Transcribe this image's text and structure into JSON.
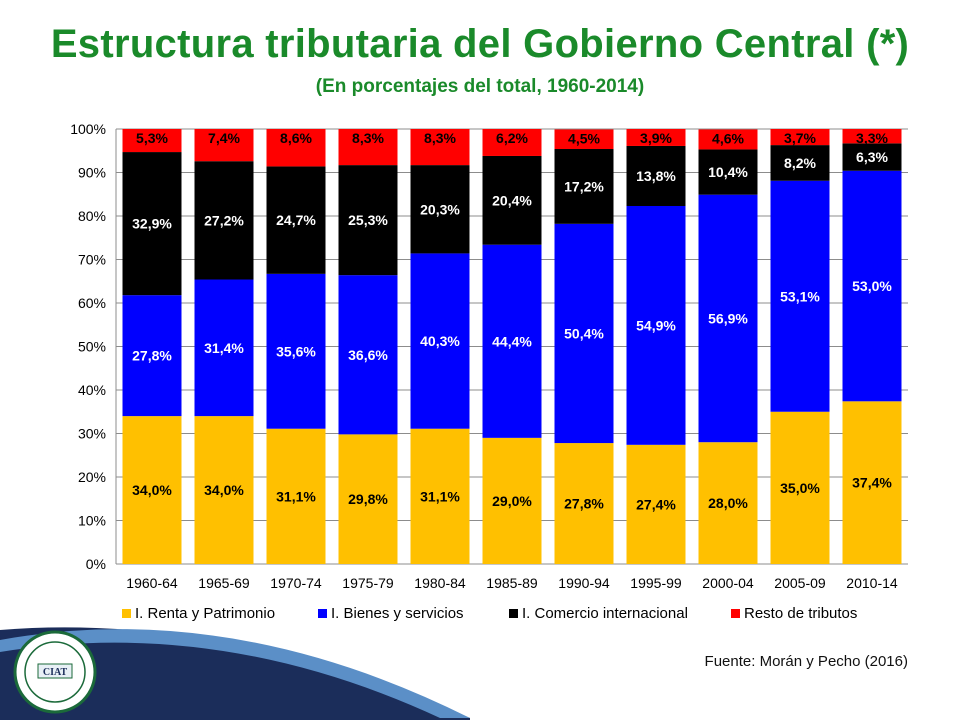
{
  "title": "Estructura tributaria del Gobierno Central (*)",
  "subtitle": "(En porcentajes del total, 1960-2014)",
  "source": "Fuente: Morán y Pecho (2016)",
  "colors": {
    "title": "#1a8a2a",
    "renta": "#ffc000",
    "bienes": "#0000ff",
    "comercio": "#000000",
    "resto": "#ff0000",
    "decor_navy": "#1b2d5a",
    "decor_blue": "#5b8fc7"
  },
  "logo": {
    "icon": "institution-seal-icon",
    "text": "CIAT"
  },
  "chart_data": {
    "type": "bar",
    "stacked": true,
    "categories": [
      "1960-64",
      "1965-69",
      "1970-74",
      "1975-79",
      "1980-84",
      "1985-89",
      "1990-94",
      "1995-99",
      "2000-04",
      "2005-09",
      "2010-14"
    ],
    "series": [
      {
        "name": "I. Renta y Patrimonio",
        "color": "#ffc000",
        "values": [
          34.0,
          34.0,
          31.1,
          29.8,
          31.1,
          29.0,
          27.8,
          27.4,
          28.0,
          35.0,
          37.4
        ],
        "labels": [
          "34,0%",
          "34,0%",
          "31,1%",
          "29,8%",
          "31,1%",
          "29,0%",
          "27,8%",
          "27,4%",
          "28,0%",
          "35,0%",
          "37,4%"
        ]
      },
      {
        "name": "I. Bienes y servicios",
        "color": "#0000ff",
        "values": [
          27.8,
          31.4,
          35.6,
          36.6,
          40.3,
          44.4,
          50.4,
          54.9,
          56.9,
          53.1,
          53.0
        ],
        "labels": [
          "27,8%",
          "31,4%",
          "35,6%",
          "36,6%",
          "40,3%",
          "44,4%",
          "50,4%",
          "54,9%",
          "56,9%",
          "53,1%",
          "53,0%"
        ]
      },
      {
        "name": "I. Comercio internacional",
        "color": "#000000",
        "values": [
          32.9,
          27.2,
          24.7,
          25.3,
          20.3,
          20.4,
          17.2,
          13.8,
          10.4,
          8.2,
          6.3
        ],
        "labels": [
          "32,9%",
          "27,2%",
          "24,7%",
          "25,3%",
          "20,3%",
          "20,4%",
          "17,2%",
          "13,8%",
          "10,4%",
          "8,2%",
          "6,3%"
        ]
      },
      {
        "name": "Resto de tributos",
        "color": "#ff0000",
        "values": [
          5.3,
          7.4,
          8.6,
          8.3,
          8.3,
          6.2,
          4.5,
          3.9,
          4.6,
          3.7,
          3.3
        ],
        "labels": [
          "5,3%",
          "7,4%",
          "8,6%",
          "8,3%",
          "8,3%",
          "6,2%",
          "4,5%",
          "3,9%",
          "4,6%",
          "3,7%",
          "3,3%"
        ]
      }
    ],
    "y_ticks": [
      "0%",
      "10%",
      "20%",
      "30%",
      "40%",
      "50%",
      "60%",
      "70%",
      "80%",
      "90%",
      "100%"
    ],
    "ylim": [
      0,
      100
    ],
    "grid": true,
    "legend_position": "bottom"
  }
}
